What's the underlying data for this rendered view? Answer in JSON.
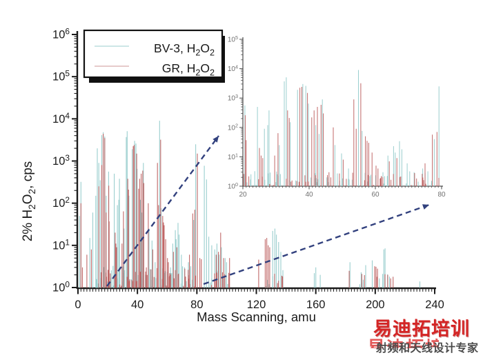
{
  "watermark": {
    "title": "易迪拓培训",
    "fragment_text": "易迪拓培训",
    "subtitle": "射频和天线设计专家",
    "title_color": "#d42525",
    "subtitle_color": "#4b4b4b"
  },
  "chart_data": {
    "type": "line",
    "title": "",
    "main_axes": {
      "xlabel": "Mass Scanning, amu",
      "ylabel": "2% H2O2, cps",
      "ylabel_parts": [
        [
          "2% H"
        ],
        [
          "2",
          "sub"
        ],
        [
          "O"
        ],
        [
          "2",
          "sub"
        ],
        [
          ", cps"
        ]
      ],
      "xlim": [
        0,
        240
      ],
      "ylog_lim": [
        0,
        6
      ],
      "xticks": [
        0,
        40,
        80,
        120,
        160,
        200,
        240
      ],
      "ytick_exponents": [
        0,
        1,
        2,
        3,
        4,
        5,
        6
      ],
      "x_minor_step": 2
    },
    "inset_axes": {
      "xlim": [
        20,
        80
      ],
      "ylog_lim": [
        0,
        5
      ],
      "xticks": [
        20,
        40,
        60,
        80
      ],
      "ytick_exponents": [
        0,
        1,
        2,
        3,
        4,
        5
      ],
      "x_minor_step": 1
    },
    "legend": {
      "entries": [
        {
          "label": "BV-3, H2O2",
          "parts": [
            [
              "BV-3, H"
            ],
            [
              "2",
              "sub"
            ],
            [
              "O"
            ],
            [
              "2",
              "sub"
            ]
          ],
          "line_color": "#bcdede"
        },
        {
          "label": "GR, H2O2",
          "parts": [
            [
              "GR, H"
            ],
            [
              "2",
              "sub"
            ],
            [
              "O"
            ],
            [
              "2",
              "sub"
            ]
          ],
          "line_color": "#ddb8b8"
        }
      ]
    },
    "series": [
      {
        "name": "BV-3, H2O2",
        "color": "#93cbcb",
        "peaks": [
          [
            1,
            50
          ],
          [
            2,
            320
          ],
          [
            8,
            15
          ],
          [
            10,
            60
          ],
          [
            12,
            150
          ],
          [
            13,
            2000
          ],
          [
            14,
            900
          ],
          [
            15,
            350
          ],
          [
            16,
            4100
          ],
          [
            17,
            4800
          ],
          [
            18,
            3800
          ],
          [
            19,
            150
          ],
          [
            20.6,
            560
          ],
          [
            22.3,
            1.7
          ],
          [
            24.4,
            500
          ],
          [
            26.5,
            90
          ],
          [
            27.5,
            120
          ],
          [
            27.9,
            380
          ],
          [
            31,
            25
          ],
          [
            32.5,
            3700
          ],
          [
            33.1,
            5100
          ],
          [
            34.3,
            150
          ],
          [
            36.5,
            1900
          ],
          [
            38.1,
            3000
          ],
          [
            39,
            2600
          ],
          [
            39.8,
            650
          ],
          [
            42,
            120
          ],
          [
            43,
            60
          ],
          [
            44,
            900
          ],
          [
            45.6,
            2
          ],
          [
            47.8,
            25
          ],
          [
            49.8,
            13
          ],
          [
            51.9,
            4
          ],
          [
            54.9,
            9000
          ],
          [
            56,
            76
          ],
          [
            62.3,
            3
          ],
          [
            63.8,
            11
          ],
          [
            65.5,
            23
          ],
          [
            66,
            14
          ],
          [
            67.3,
            34
          ],
          [
            68,
            18
          ],
          [
            69.6,
            6
          ],
          [
            71.7,
            3
          ],
          [
            74.3,
            4
          ],
          [
            77.8,
            40
          ],
          [
            79.2,
            2500
          ],
          [
            85,
            770
          ],
          [
            86.5,
            365
          ],
          [
            88,
            16
          ],
          [
            90,
            10
          ],
          [
            92,
            8
          ],
          [
            93.5,
            11
          ],
          [
            95,
            6
          ],
          [
            96.5,
            9
          ],
          [
            99,
            5
          ],
          [
            100,
            4
          ],
          [
            131,
            22
          ],
          [
            132.5,
            25
          ],
          [
            133.5,
            18
          ],
          [
            135,
            12
          ],
          [
            136.5,
            7
          ],
          [
            159,
            2.2
          ],
          [
            160,
            3
          ],
          [
            163,
            2
          ],
          [
            183,
            4
          ],
          [
            190.5,
            2.3
          ],
          [
            193.6,
            3.4
          ],
          [
            198,
            4.4
          ],
          [
            205,
            2.1
          ],
          [
            205.8,
            8
          ],
          [
            206.6,
            8.5
          ],
          [
            230,
            1.4
          ]
        ]
      },
      {
        "name": "GR, H2O2",
        "color": "#bd5f5f",
        "peaks": [
          [
            2,
            100
          ],
          [
            3,
            3
          ],
          [
            6,
            6
          ],
          [
            9,
            8
          ],
          [
            14,
            250
          ],
          [
            16,
            800
          ],
          [
            17,
            4400
          ],
          [
            18,
            3500
          ],
          [
            19,
            60
          ],
          [
            20.7,
            260
          ],
          [
            21,
            37
          ],
          [
            25,
            20
          ],
          [
            25.5,
            11
          ],
          [
            26,
            9
          ],
          [
            29.6,
            11
          ],
          [
            30.6,
            64
          ],
          [
            33.5,
            380
          ],
          [
            34,
            210
          ],
          [
            37.2,
            2250
          ],
          [
            37.8,
            2400
          ],
          [
            39.5,
            1500
          ],
          [
            40.8,
            220
          ],
          [
            41.5,
            380
          ],
          [
            42.5,
            500
          ],
          [
            43.6,
            590
          ],
          [
            44.3,
            300
          ],
          [
            46,
            3
          ],
          [
            47.3,
            100
          ],
          [
            50.3,
            8
          ],
          [
            53.5,
            900
          ],
          [
            54.2,
            90
          ],
          [
            55.6,
            3200
          ],
          [
            57,
            50
          ],
          [
            57.5,
            35
          ],
          [
            58,
            30
          ],
          [
            59,
            14
          ],
          [
            60.2,
            5
          ],
          [
            60.8,
            4
          ],
          [
            64.2,
            7
          ],
          [
            66.5,
            9
          ],
          [
            75,
            6
          ],
          [
            77.2,
            57
          ],
          [
            78.6,
            70
          ],
          [
            80.3,
            1500
          ],
          [
            82,
            5
          ],
          [
            83,
            4.7
          ],
          [
            93,
            6
          ],
          [
            94.5,
            7
          ],
          [
            96,
            20
          ],
          [
            98,
            5
          ],
          [
            102,
            5
          ],
          [
            121.6,
            4.6
          ],
          [
            126,
            14
          ],
          [
            127,
            15
          ],
          [
            128,
            10
          ],
          [
            129,
            9
          ],
          [
            182.5,
            2.5
          ],
          [
            191,
            2.1
          ],
          [
            199.6,
            3.2
          ],
          [
            200.5,
            3.1
          ],
          [
            201.5,
            2.8
          ],
          [
            208.4,
            2
          ],
          [
            212,
            1.8
          ]
        ]
      }
    ],
    "noise": [
      {
        "series": 0,
        "range": [
          12,
          80
        ],
        "count": 60,
        "logmax": 0.5,
        "seed": 7
      },
      {
        "series": 1,
        "range": [
          12,
          80
        ],
        "count": 55,
        "logmax": 0.45,
        "seed": 13
      },
      {
        "series": 0,
        "range": [
          84,
          104
        ],
        "count": 8,
        "logmax": 0.4,
        "seed": 21
      },
      {
        "series": 1,
        "range": [
          88,
          103
        ],
        "count": 8,
        "logmax": 0.35,
        "seed": 29
      },
      {
        "series": 0,
        "range": [
          124,
          140
        ],
        "count": 6,
        "logmax": 0.4,
        "seed": 31
      },
      {
        "series": 1,
        "range": [
          120,
          138
        ],
        "count": 6,
        "logmax": 0.35,
        "seed": 37
      },
      {
        "series": 0,
        "range": [
          188,
          212
        ],
        "count": 6,
        "logmax": 0.3,
        "seed": 41
      },
      {
        "series": 1,
        "range": [
          190,
          212
        ],
        "count": 5,
        "logmax": 0.3,
        "seed": 43
      }
    ],
    "callouts": [
      {
        "from": [
          155,
          415
        ],
        "to": [
          317,
          197
        ]
      },
      {
        "from": [
          295,
          412
        ],
        "to": [
          622,
          297
        ]
      }
    ],
    "colors": {
      "axis": "#1a1a1a",
      "inset_axis": "#4a4a4a",
      "inset_label": "#6e6e6e",
      "callout": "#32417e",
      "legend_border": "#111111",
      "legend_shadow": "#111111"
    }
  }
}
